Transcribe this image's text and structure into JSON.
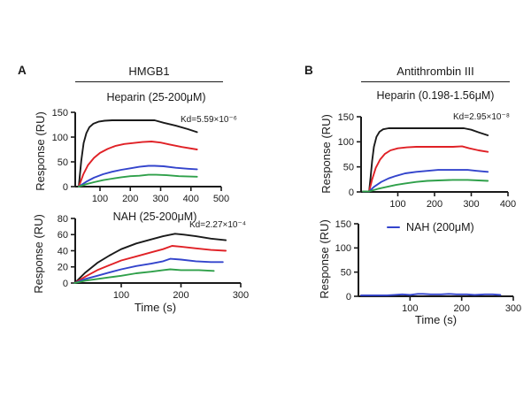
{
  "panels": {
    "a": {
      "label": "A",
      "title": "HMGB1"
    },
    "b": {
      "label": "B",
      "title": "Antithrombin III"
    }
  },
  "colors": {
    "axis": "#1a1a1a",
    "black": "#1a1a1a",
    "red": "#e02126",
    "blue": "#3344cc",
    "green": "#2fa04a"
  },
  "chart_data": [
    {
      "id": "hmgb1-heparin",
      "type": "line",
      "title": "Heparin (25-200μM)",
      "annotation": "Kd=5.59×10⁻⁶",
      "xlabel": "",
      "ylabel": "Response (RU)",
      "xlim": [
        0,
        500
      ],
      "ylim": [
        0,
        150
      ],
      "xticks": [
        100,
        200,
        300,
        400,
        500
      ],
      "yticks": [
        0,
        50,
        100,
        150
      ],
      "series": [
        {
          "color": "#1a1a1a",
          "points": [
            [
              30,
              0
            ],
            [
              38,
              52
            ],
            [
              46,
              88
            ],
            [
              55,
              108
            ],
            [
              65,
              120
            ],
            [
              78,
              127
            ],
            [
              95,
              131
            ],
            [
              115,
              133
            ],
            [
              140,
              134
            ],
            [
              200,
              134
            ],
            [
              280,
              134
            ],
            [
              310,
              129
            ],
            [
              350,
              123
            ],
            [
              390,
              116
            ],
            [
              420,
              110
            ]
          ]
        },
        {
          "color": "#e02126",
          "points": [
            [
              30,
              0
            ],
            [
              45,
              25
            ],
            [
              60,
              43
            ],
            [
              80,
              58
            ],
            [
              100,
              68
            ],
            [
              125,
              76
            ],
            [
              150,
              82
            ],
            [
              180,
              86
            ],
            [
              210,
              88
            ],
            [
              240,
              90
            ],
            [
              270,
              91
            ],
            [
              300,
              89
            ],
            [
              330,
              85
            ],
            [
              370,
              80
            ],
            [
              420,
              75
            ]
          ]
        },
        {
          "color": "#3344cc",
          "points": [
            [
              30,
              0
            ],
            [
              55,
              10
            ],
            [
              80,
              18
            ],
            [
              110,
              25
            ],
            [
              140,
              30
            ],
            [
              170,
              34
            ],
            [
              200,
              37
            ],
            [
              230,
              40
            ],
            [
              260,
              42
            ],
            [
              280,
              42
            ],
            [
              310,
              41
            ],
            [
              350,
              38
            ],
            [
              390,
              36
            ],
            [
              420,
              35
            ]
          ]
        },
        {
          "color": "#2fa04a",
          "points": [
            [
              30,
              0
            ],
            [
              55,
              5
            ],
            [
              80,
              9
            ],
            [
              110,
              13
            ],
            [
              140,
              16
            ],
            [
              170,
              19
            ],
            [
              200,
              21
            ],
            [
              230,
              22
            ],
            [
              260,
              24
            ],
            [
              285,
              24
            ],
            [
              320,
              23
            ],
            [
              360,
              21
            ],
            [
              420,
              20
            ]
          ]
        }
      ]
    },
    {
      "id": "hmgb1-nah",
      "type": "line",
      "title": "NAH (25-200μM)",
      "annotation": "Kd=2.27×10⁻⁴",
      "xlabel": "Time (s)",
      "ylabel": "Response (RU)",
      "xlim": [
        0,
        300
      ],
      "ylim": [
        0,
        80
      ],
      "xticks": [
        100,
        200,
        300
      ],
      "yticks": [
        0,
        20,
        40,
        60,
        80
      ],
      "series": [
        {
          "color": "#1a1a1a",
          "points": [
            [
              22,
              0
            ],
            [
              40,
              13
            ],
            [
              60,
              25
            ],
            [
              80,
              34
            ],
            [
              100,
              42
            ],
            [
              125,
              49
            ],
            [
              150,
              54
            ],
            [
              170,
              58
            ],
            [
              190,
              61
            ],
            [
              205,
              60
            ],
            [
              225,
              58
            ],
            [
              250,
              55
            ],
            [
              275,
              53
            ]
          ]
        },
        {
          "color": "#e02126",
          "points": [
            [
              22,
              0
            ],
            [
              40,
              8
            ],
            [
              60,
              16
            ],
            [
              80,
              22
            ],
            [
              100,
              28
            ],
            [
              125,
              33
            ],
            [
              150,
              38
            ],
            [
              170,
              42
            ],
            [
              185,
              46
            ],
            [
              200,
              45
            ],
            [
              225,
              43
            ],
            [
              250,
              41
            ],
            [
              275,
              40
            ]
          ]
        },
        {
          "color": "#3344cc",
          "points": [
            [
              22,
              0
            ],
            [
              40,
              5
            ],
            [
              60,
              9
            ],
            [
              80,
              13
            ],
            [
              100,
              17
            ],
            [
              125,
              21
            ],
            [
              150,
              24
            ],
            [
              170,
              27
            ],
            [
              182,
              30
            ],
            [
              200,
              29
            ],
            [
              225,
              27
            ],
            [
              250,
              26
            ],
            [
              270,
              26
            ]
          ]
        },
        {
          "color": "#2fa04a",
          "points": [
            [
              22,
              0
            ],
            [
              40,
              3
            ],
            [
              60,
              5
            ],
            [
              80,
              7
            ],
            [
              100,
              9
            ],
            [
              125,
              12
            ],
            [
              150,
              14
            ],
            [
              170,
              16
            ],
            [
              182,
              17
            ],
            [
              200,
              16
            ],
            [
              230,
              16
            ],
            [
              255,
              15
            ]
          ]
        }
      ]
    },
    {
      "id": "atiii-heparin",
      "type": "line",
      "title": "Heparin (0.198-1.56μM)",
      "annotation": "Kd=2.95×10⁻⁸",
      "xlabel": "",
      "ylabel": "Response (RU)",
      "xlim": [
        0,
        400
      ],
      "ylim": [
        0,
        150
      ],
      "xticks": [
        100,
        200,
        300,
        400
      ],
      "yticks": [
        0,
        50,
        100,
        150
      ],
      "series": [
        {
          "color": "#1a1a1a",
          "points": [
            [
              5,
              1
            ],
            [
              22,
              1
            ],
            [
              26,
              30
            ],
            [
              30,
              62
            ],
            [
              35,
              90
            ],
            [
              42,
              110
            ],
            [
              50,
              120
            ],
            [
              60,
              125
            ],
            [
              75,
              127
            ],
            [
              100,
              127
            ],
            [
              200,
              127
            ],
            [
              280,
              127
            ],
            [
              300,
              124
            ],
            [
              320,
              119
            ],
            [
              345,
              113
            ]
          ]
        },
        {
          "color": "#e02126",
          "points": [
            [
              5,
              1
            ],
            [
              22,
              1
            ],
            [
              30,
              25
            ],
            [
              40,
              48
            ],
            [
              52,
              65
            ],
            [
              65,
              76
            ],
            [
              80,
              83
            ],
            [
              100,
              87
            ],
            [
              125,
              89
            ],
            [
              150,
              90
            ],
            [
              200,
              90
            ],
            [
              250,
              90
            ],
            [
              275,
              91
            ],
            [
              295,
              87
            ],
            [
              320,
              83
            ],
            [
              345,
              80
            ]
          ]
        },
        {
          "color": "#3344cc",
          "points": [
            [
              5,
              1
            ],
            [
              22,
              1
            ],
            [
              35,
              10
            ],
            [
              55,
              20
            ],
            [
              75,
              27
            ],
            [
              95,
              32
            ],
            [
              120,
              37
            ],
            [
              150,
              40
            ],
            [
              180,
              42
            ],
            [
              210,
              44
            ],
            [
              250,
              44
            ],
            [
              290,
              44
            ],
            [
              315,
              42
            ],
            [
              345,
              40
            ]
          ]
        },
        {
          "color": "#2fa04a",
          "points": [
            [
              5,
              1
            ],
            [
              22,
              1
            ],
            [
              45,
              6
            ],
            [
              70,
              10
            ],
            [
              95,
              14
            ],
            [
              120,
              17
            ],
            [
              150,
              20
            ],
            [
              180,
              22
            ],
            [
              210,
              23
            ],
            [
              250,
              24
            ],
            [
              290,
              24
            ],
            [
              320,
              23
            ],
            [
              345,
              22
            ]
          ]
        }
      ]
    },
    {
      "id": "atiii-nah",
      "type": "line",
      "title": "",
      "legend": "NAH (200μM)",
      "legend_color": "#3344cc",
      "annotation": "",
      "xlabel": "Time (s)",
      "ylabel": "Response (RU)",
      "xlim": [
        0,
        300
      ],
      "ylim": [
        0,
        150
      ],
      "xticks": [
        100,
        200,
        300
      ],
      "yticks": [
        0,
        50,
        100,
        150
      ],
      "series": [
        {
          "color": "#3344cc",
          "points": [
            [
              5,
              2
            ],
            [
              30,
              2
            ],
            [
              55,
              2
            ],
            [
              70,
              3
            ],
            [
              85,
              4
            ],
            [
              100,
              3
            ],
            [
              115,
              5
            ],
            [
              125,
              5
            ],
            [
              140,
              4
            ],
            [
              160,
              4
            ],
            [
              175,
              5
            ],
            [
              190,
              4
            ],
            [
              210,
              4
            ],
            [
              225,
              3
            ],
            [
              245,
              4
            ],
            [
              260,
              4
            ],
            [
              275,
              3
            ]
          ]
        }
      ]
    }
  ]
}
